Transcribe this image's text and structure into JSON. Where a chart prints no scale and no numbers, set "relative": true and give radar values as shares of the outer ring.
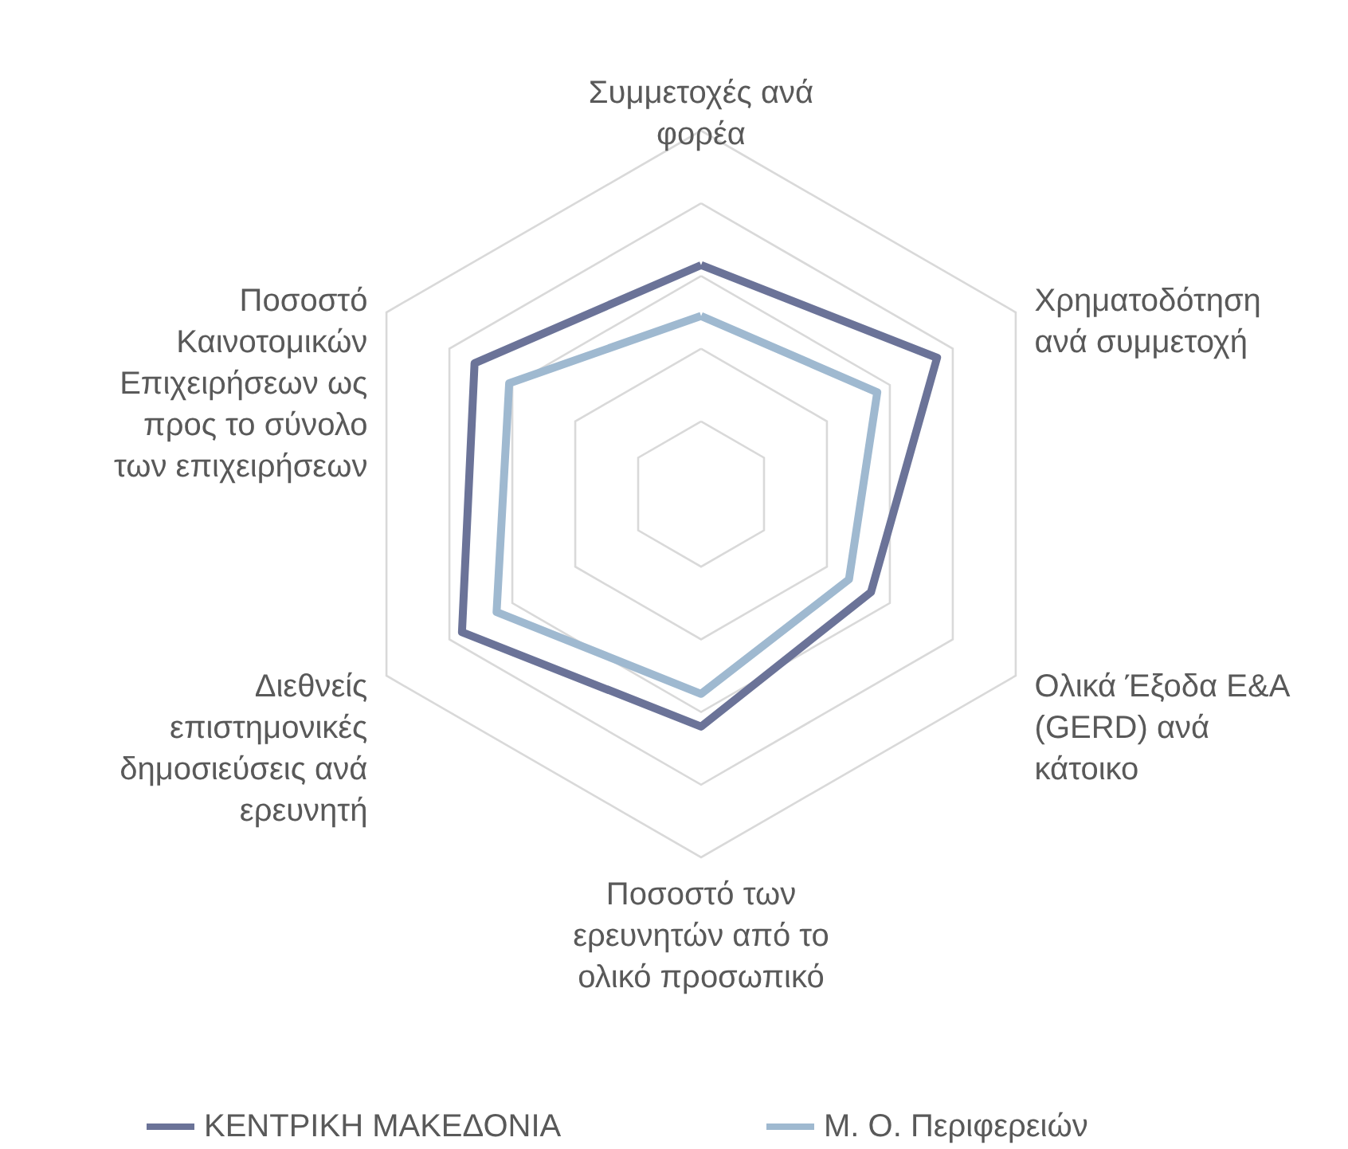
{
  "chart_data": {
    "type": "radar",
    "relative": true,
    "grid": true,
    "legend": "bottom",
    "categories": [
      "Συμμετοχές ανά φορέα",
      "Χρηματοδότηση ανά συμμετοχή",
      "Ολικά Έξοδα Ε&Α (GERD) ανά κάτοικο",
      "Ποσοστό των ερευνητών από το ολικό προσωπικό",
      "Διεθνείς επιστημονικές δημοσιεύσεις ανά ερευνητή",
      "Ποσοστό Καινοτομικών Επιχειρήσεων ως προς το σύνολο των επιχειρήσεων"
    ],
    "series": [
      {
        "name": "ΚΕΝΤΡΙΚΗ ΜΑΚΕΔΟΝΙΑ",
        "color": "#6b7398",
        "values": [
          0.63,
          0.75,
          0.54,
          0.64,
          0.76,
          0.72
        ]
      },
      {
        "name": "Μ. Ο. Περιφερειών",
        "color": "#9fb9d0",
        "values": [
          0.49,
          0.56,
          0.47,
          0.55,
          0.65,
          0.61
        ]
      }
    ]
  }
}
